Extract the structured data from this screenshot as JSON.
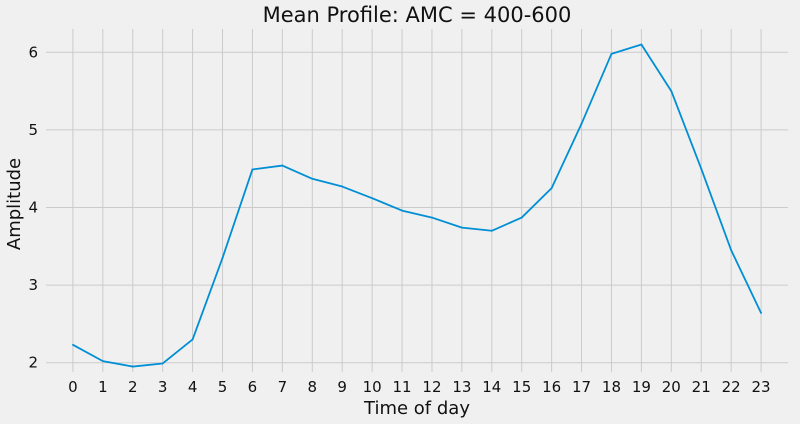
{
  "chart_data": {
    "type": "line",
    "title": "Mean Profile: AMC = 400-600",
    "xlabel": "Time of day",
    "ylabel": "Amplitude",
    "x": [
      0,
      1,
      2,
      3,
      4,
      5,
      6,
      7,
      8,
      9,
      10,
      11,
      12,
      13,
      14,
      15,
      16,
      17,
      18,
      19,
      20,
      21,
      22,
      23
    ],
    "xticks": [
      "0",
      "1",
      "2",
      "3",
      "4",
      "5",
      "6",
      "7",
      "8",
      "9",
      "10",
      "11",
      "12",
      "13",
      "14",
      "15",
      "16",
      "17",
      "18",
      "19",
      "20",
      "21",
      "22",
      "23"
    ],
    "yticks": [
      "2",
      "3",
      "4",
      "5",
      "6"
    ],
    "ytick_values": [
      2,
      3,
      4,
      5,
      6
    ],
    "series": [
      {
        "values": [
          2.23,
          2.02,
          1.95,
          1.99,
          2.3,
          3.35,
          4.49,
          4.54,
          4.37,
          4.27,
          4.12,
          3.96,
          3.87,
          3.74,
          3.7,
          3.87,
          4.25,
          5.08,
          5.98,
          6.1,
          5.5,
          4.5,
          3.45,
          2.64
        ],
        "color": "#008fd5"
      }
    ],
    "xlim": [
      -0.9,
      23.9
    ],
    "ylim": [
      1.88,
      6.3
    ],
    "grid": true,
    "legend": "none"
  }
}
